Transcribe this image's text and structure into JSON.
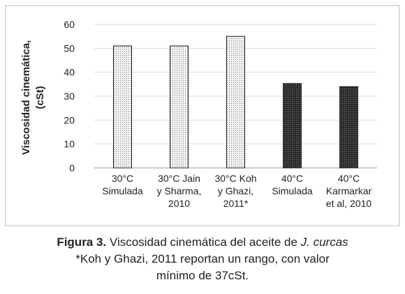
{
  "chart_data": {
    "type": "bar",
    "y_label_lines": [
      "Viscosidad cinemática,",
      "(cSt)"
    ],
    "categories": [
      [
        "30°C",
        "Simulada"
      ],
      [
        "30°C Jain",
        "y Sharma,",
        "2010"
      ],
      [
        "30°C Koh",
        "y Ghazi,",
        "2011*"
      ],
      [
        "40°C",
        "Simulada"
      ],
      [
        "40°C",
        "Karmarkar",
        "et al, 2010"
      ]
    ],
    "values": [
      51,
      51,
      55,
      35.3,
      34
    ],
    "colors": [
      "#f2f2f2",
      "#f2f2f2",
      "#f2f2f2",
      "#2a2a2a",
      "#2a2a2a"
    ],
    "ylim": [
      0,
      60
    ],
    "yticks": [
      0,
      10,
      20,
      30,
      40,
      50,
      60
    ],
    "grid": true
  },
  "caption": {
    "label": "Figura 3.",
    "text": "Viscosidad cinemática del aceite de",
    "species": "J. curcas",
    "note_lines": [
      "*Koh y Ghazi, 2011 reportan un rango, con valor",
      "mínimo de 37cSt."
    ]
  }
}
